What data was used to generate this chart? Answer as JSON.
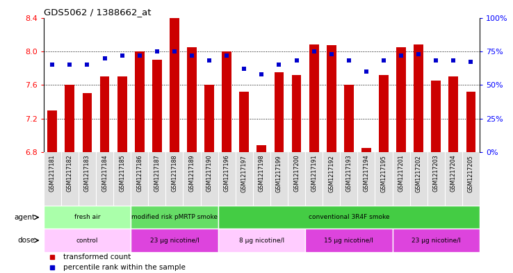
{
  "title": "GDS5062 / 1388662_at",
  "samples": [
    "GSM1217181",
    "GSM1217182",
    "GSM1217183",
    "GSM1217184",
    "GSM1217185",
    "GSM1217186",
    "GSM1217187",
    "GSM1217188",
    "GSM1217189",
    "GSM1217190",
    "GSM1217196",
    "GSM1217197",
    "GSM1217198",
    "GSM1217199",
    "GSM1217200",
    "GSM1217191",
    "GSM1217192",
    "GSM1217193",
    "GSM1217194",
    "GSM1217195",
    "GSM1217201",
    "GSM1217202",
    "GSM1217203",
    "GSM1217204",
    "GSM1217205"
  ],
  "bar_values": [
    7.3,
    7.6,
    7.5,
    7.7,
    7.7,
    8.0,
    7.9,
    8.4,
    8.05,
    7.6,
    8.0,
    7.52,
    6.88,
    7.75,
    7.72,
    8.08,
    8.07,
    7.6,
    6.85,
    7.72,
    8.05,
    8.08,
    7.65,
    7.7,
    7.52
  ],
  "percentile_values": [
    65,
    65,
    65,
    70,
    72,
    72,
    75,
    75,
    72,
    68,
    72,
    62,
    58,
    65,
    68,
    75,
    73,
    68,
    60,
    68,
    72,
    73,
    68,
    68,
    67
  ],
  "ylim": [
    6.8,
    8.4
  ],
  "yticks": [
    6.8,
    7.2,
    7.6,
    8.0,
    8.4
  ],
  "right_yticks": [
    0,
    25,
    50,
    75,
    100
  ],
  "bar_color": "#cc0000",
  "dot_color": "#0000cc",
  "agent_groups": [
    {
      "label": "fresh air",
      "start": 0,
      "end": 5,
      "color": "#aaffaa"
    },
    {
      "label": "modified risk pMRTP smoke",
      "start": 5,
      "end": 10,
      "color": "#66dd66"
    },
    {
      "label": "conventional 3R4F smoke",
      "start": 10,
      "end": 25,
      "color": "#44cc44"
    }
  ],
  "dose_groups": [
    {
      "label": "control",
      "start": 0,
      "end": 5,
      "color": "#ffccff"
    },
    {
      "label": "23 μg nicotine/l",
      "start": 5,
      "end": 10,
      "color": "#dd44dd"
    },
    {
      "label": "8 μg nicotine/l",
      "start": 10,
      "end": 15,
      "color": "#ffccff"
    },
    {
      "label": "15 μg nicotine/l",
      "start": 15,
      "end": 20,
      "color": "#dd44dd"
    },
    {
      "label": "23 μg nicotine/l",
      "start": 20,
      "end": 25,
      "color": "#dd44dd"
    }
  ],
  "background_color": "#ffffff"
}
